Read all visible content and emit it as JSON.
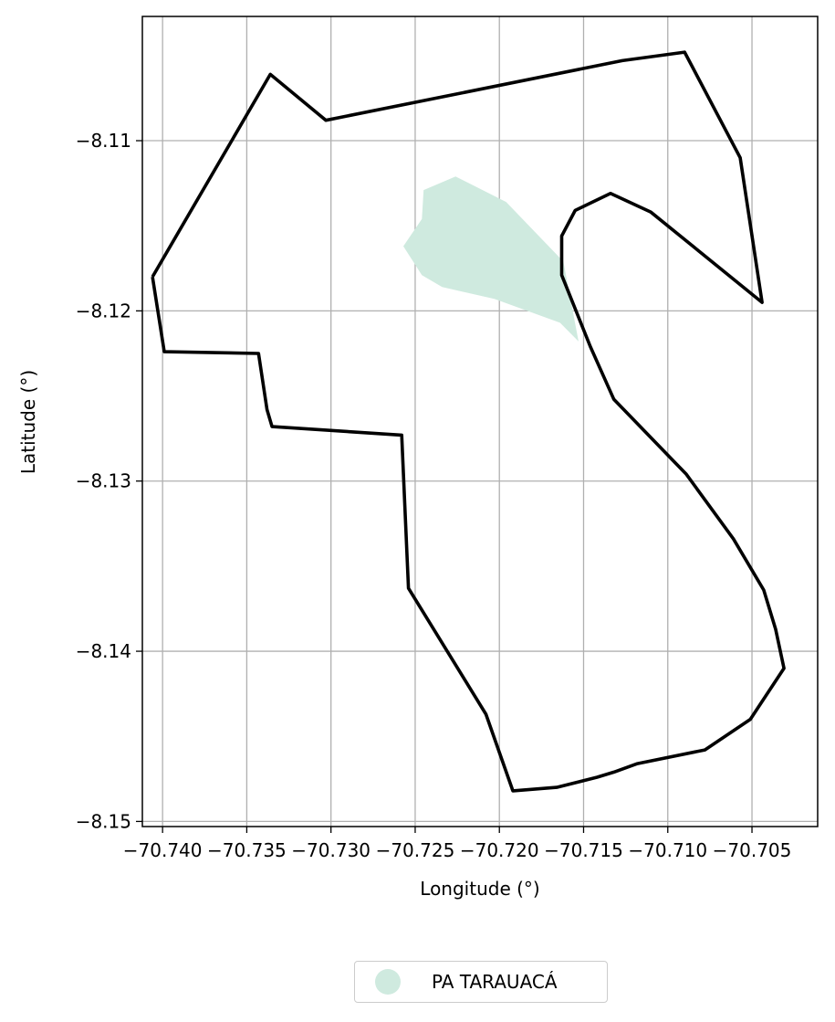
{
  "map": {
    "xlabel": "Longitude (°)",
    "ylabel": "Latitude (°)",
    "x_ticks": [
      "−70.740",
      "−70.735",
      "−70.730",
      "−70.725",
      "−70.720",
      "−70.715",
      "−70.710",
      "−70.705"
    ],
    "x_tick_values": [
      -70.74,
      -70.735,
      -70.73,
      -70.725,
      -70.72,
      -70.715,
      -70.71,
      -70.705
    ],
    "y_ticks": [
      "−8.11",
      "−8.12",
      "−8.13",
      "−8.14",
      "−8.15"
    ],
    "y_tick_values": [
      -8.11,
      -8.12,
      -8.13,
      -8.14,
      -8.15
    ],
    "xlim": [
      -70.7412,
      -70.7011
    ],
    "ylim": [
      -8.1503,
      -8.1027
    ],
    "grid": true,
    "legend_placement": "below plot",
    "colors": {
      "boundary": "#000000",
      "area_fill": "#cfeadf",
      "grid": "#b0b0b0"
    }
  },
  "boundary_polygon": [
    [
      -70.7406,
      -8.118
    ],
    [
      -70.7399,
      -8.1224
    ],
    [
      -70.7343,
      -8.1225
    ],
    [
      -70.7338,
      -8.1258
    ],
    [
      -70.7335,
      -8.1268
    ],
    [
      -70.7258,
      -8.1273
    ],
    [
      -70.7254,
      -8.1363
    ],
    [
      -70.7208,
      -8.1437
    ],
    [
      -70.7192,
      -8.1482
    ],
    [
      -70.7166,
      -8.148
    ],
    [
      -70.7142,
      -8.1474
    ],
    [
      -70.7132,
      -8.1471
    ],
    [
      -70.7118,
      -8.1466
    ],
    [
      -70.7078,
      -8.1458
    ],
    [
      -70.7051,
      -8.144
    ],
    [
      -70.7031,
      -8.141
    ],
    [
      -70.7036,
      -8.1387
    ],
    [
      -70.7043,
      -8.1364
    ],
    [
      -70.7061,
      -8.1334
    ],
    [
      -70.7089,
      -8.1296
    ],
    [
      -70.7132,
      -8.1252
    ],
    [
      -70.7146,
      -8.1221
    ],
    [
      -70.7163,
      -8.1179
    ],
    [
      -70.7163,
      -8.1156
    ],
    [
      -70.7155,
      -8.1141
    ],
    [
      -70.7134,
      -8.1131
    ],
    [
      -70.711,
      -8.1142
    ],
    [
      -70.7044,
      -8.1195
    ],
    [
      -70.7057,
      -8.111
    ],
    [
      -70.709,
      -8.1048
    ],
    [
      -70.7127,
      -8.1053
    ],
    [
      -70.7303,
      -8.1088
    ],
    [
      -70.7336,
      -8.1061
    ],
    [
      -70.7406,
      -8.118
    ]
  ],
  "area_polygon": [
    [
      -70.7245,
      -8.1129
    ],
    [
      -70.7226,
      -8.1121
    ],
    [
      -70.7196,
      -8.1136
    ],
    [
      -70.7162,
      -8.1171
    ],
    [
      -70.7153,
      -8.1218
    ],
    [
      -70.7164,
      -8.1207
    ],
    [
      -70.7203,
      -8.1193
    ],
    [
      -70.7234,
      -8.1186
    ],
    [
      -70.7246,
      -8.1179
    ],
    [
      -70.7257,
      -8.1162
    ],
    [
      -70.7246,
      -8.1146
    ]
  ],
  "legend": {
    "label": "PA TARAUACÁ"
  }
}
